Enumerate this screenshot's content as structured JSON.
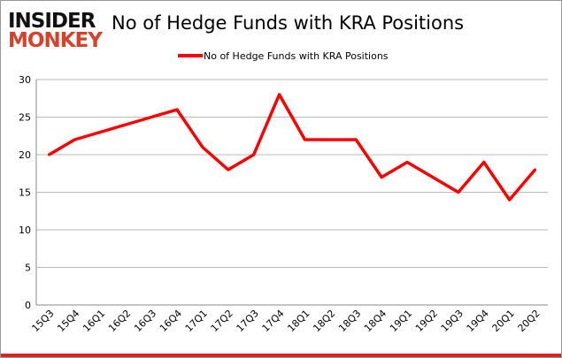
{
  "logo": {
    "line1": "INSIDER",
    "line2": "MONKEY"
  },
  "chart_data": {
    "type": "line",
    "title": "No of Hedge Funds with KRA Positions",
    "xlabel": "",
    "ylabel": "",
    "categories": [
      "15Q3",
      "15Q4",
      "16Q1",
      "16Q2",
      "16Q3",
      "16Q4",
      "17Q1",
      "17Q2",
      "17Q3",
      "17Q4",
      "18Q1",
      "18Q2",
      "18Q3",
      "18Q4",
      "19Q1",
      "19Q2",
      "19Q3",
      "19Q4",
      "20Q1",
      "20Q2"
    ],
    "series": [
      {
        "name": "No of Hedge Funds with KRA Positions",
        "color": "#ff0000",
        "values": [
          20,
          22,
          23,
          24,
          25,
          26,
          21,
          18,
          20,
          28,
          22,
          22,
          22,
          17,
          19,
          17,
          15,
          19,
          14,
          18
        ]
      }
    ],
    "ylim": [
      0,
      30
    ],
    "yticks": [
      0,
      5,
      10,
      15,
      20,
      25,
      30
    ],
    "grid": true,
    "legend": "top-center"
  }
}
